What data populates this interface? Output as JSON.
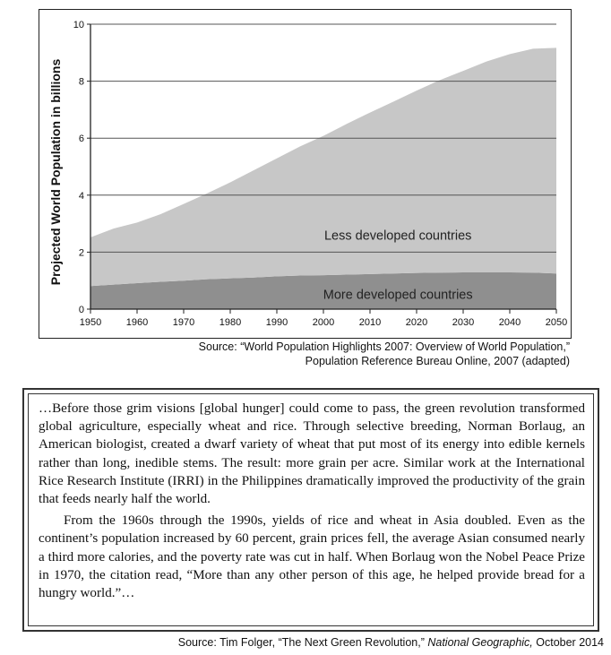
{
  "chart_data": {
    "type": "area",
    "stacked": true,
    "ylabel": "Projected World Population in billions",
    "xlabel": "",
    "xlim": [
      1950,
      2050
    ],
    "ylim": [
      0,
      10
    ],
    "x_ticks": [
      "1950",
      "1960",
      "1970",
      "1980",
      "1990",
      "2000",
      "2010",
      "2020",
      "2030",
      "2040",
      "2050"
    ],
    "y_ticks": [
      "0",
      "2",
      "4",
      "6",
      "8",
      "10"
    ],
    "grid": "horizontal",
    "x": [
      1950,
      1955,
      1960,
      1965,
      1970,
      1975,
      1980,
      1985,
      1990,
      1995,
      2000,
      2005,
      2010,
      2015,
      2020,
      2025,
      2030,
      2035,
      2040,
      2045,
      2050
    ],
    "series": [
      {
        "name": "More developed countries",
        "values": [
          0.81,
          0.86,
          0.91,
          0.96,
          1.0,
          1.05,
          1.08,
          1.11,
          1.15,
          1.18,
          1.19,
          1.21,
          1.23,
          1.25,
          1.27,
          1.28,
          1.29,
          1.29,
          1.29,
          1.28,
          1.25
        ],
        "color": "#8f8f8f"
      },
      {
        "name": "Less developed countries",
        "values": [
          1.71,
          1.97,
          2.13,
          2.37,
          2.69,
          3.01,
          3.37,
          3.76,
          4.14,
          4.53,
          4.89,
          5.29,
          5.67,
          6.03,
          6.4,
          6.76,
          7.07,
          7.4,
          7.66,
          7.86,
          7.92
        ],
        "color": "#c7c7c7"
      }
    ],
    "label_color": "#222222"
  },
  "chart_source": {
    "line1": "Source: “World Population Highlights 2007: Overview of World Population,”",
    "line2": "Population Reference Bureau Online, 2007 (adapted)"
  },
  "quote": {
    "paragraph1": "…Before those grim visions [global hunger] could come to pass, the green revolution transformed global agriculture, especially wheat and rice. Through selective breeding, Norman Borlaug, an American biologist, created a dwarf variety of wheat that put most of its energy into edible kernels rather than long, inedible stems. The result: more grain per acre. Similar work at the International Rice Research Institute (IRRI) in the Philippines dramatically improved the productivity of the grain that feeds nearly half the world.",
    "paragraph2": "From the 1960s through the 1990s, yields of rice and wheat in Asia doubled. Even as the continent’s population increased by 60 percent, grain prices fell, the average Asian consumed nearly a third more calories, and the poverty rate was cut in half. When Borlaug won the Nobel Peace Prize in 1970, the citation read, “More than any other person of this age, he helped provide bread for a hungry world.”…"
  },
  "quote_source": {
    "prefix": "Source: Tim Folger, “The Next Green Revolution,” ",
    "publication": "National Geographic,",
    "suffix": " October 2014"
  }
}
